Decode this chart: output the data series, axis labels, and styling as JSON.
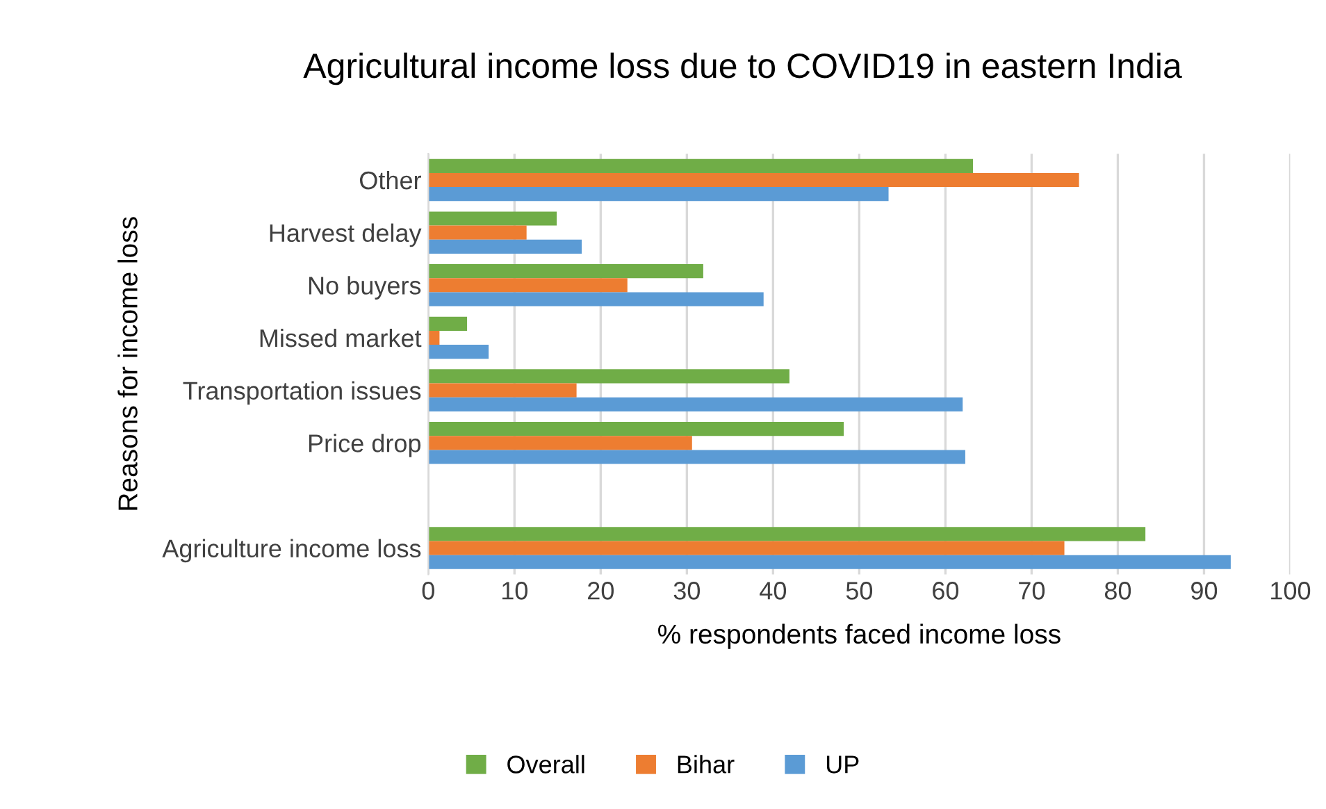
{
  "chart_data": {
    "type": "bar",
    "orientation": "horizontal",
    "title": "Agricultural income loss due to COVID19 in eastern India",
    "xlabel": "% respondents faced income loss",
    "ylabel": "Reasons for income loss",
    "categories": [
      "Other",
      "Harvest delay",
      "No buyers",
      "Missed market",
      "Transportation issues",
      "Price drop",
      null,
      "Agriculture income loss"
    ],
    "series": [
      {
        "name": "Overall",
        "color": "#70ad47",
        "values": [
          63.2,
          14.9,
          31.9,
          4.5,
          41.9,
          48.2,
          null,
          83.2
        ]
      },
      {
        "name": "Bihar",
        "color": "#ed7d31",
        "values": [
          75.5,
          11.4,
          23.1,
          1.3,
          17.2,
          30.6,
          null,
          73.8
        ]
      },
      {
        "name": "UP",
        "color": "#5b9bd5",
        "values": [
          53.4,
          17.8,
          38.9,
          7.0,
          62.0,
          62.3,
          null,
          93.1
        ]
      }
    ],
    "xlim": [
      0,
      100
    ],
    "xticks": [
      0,
      10,
      20,
      30,
      40,
      50,
      60,
      70,
      80,
      90,
      100
    ],
    "grid": "x",
    "legend": "bottom"
  }
}
